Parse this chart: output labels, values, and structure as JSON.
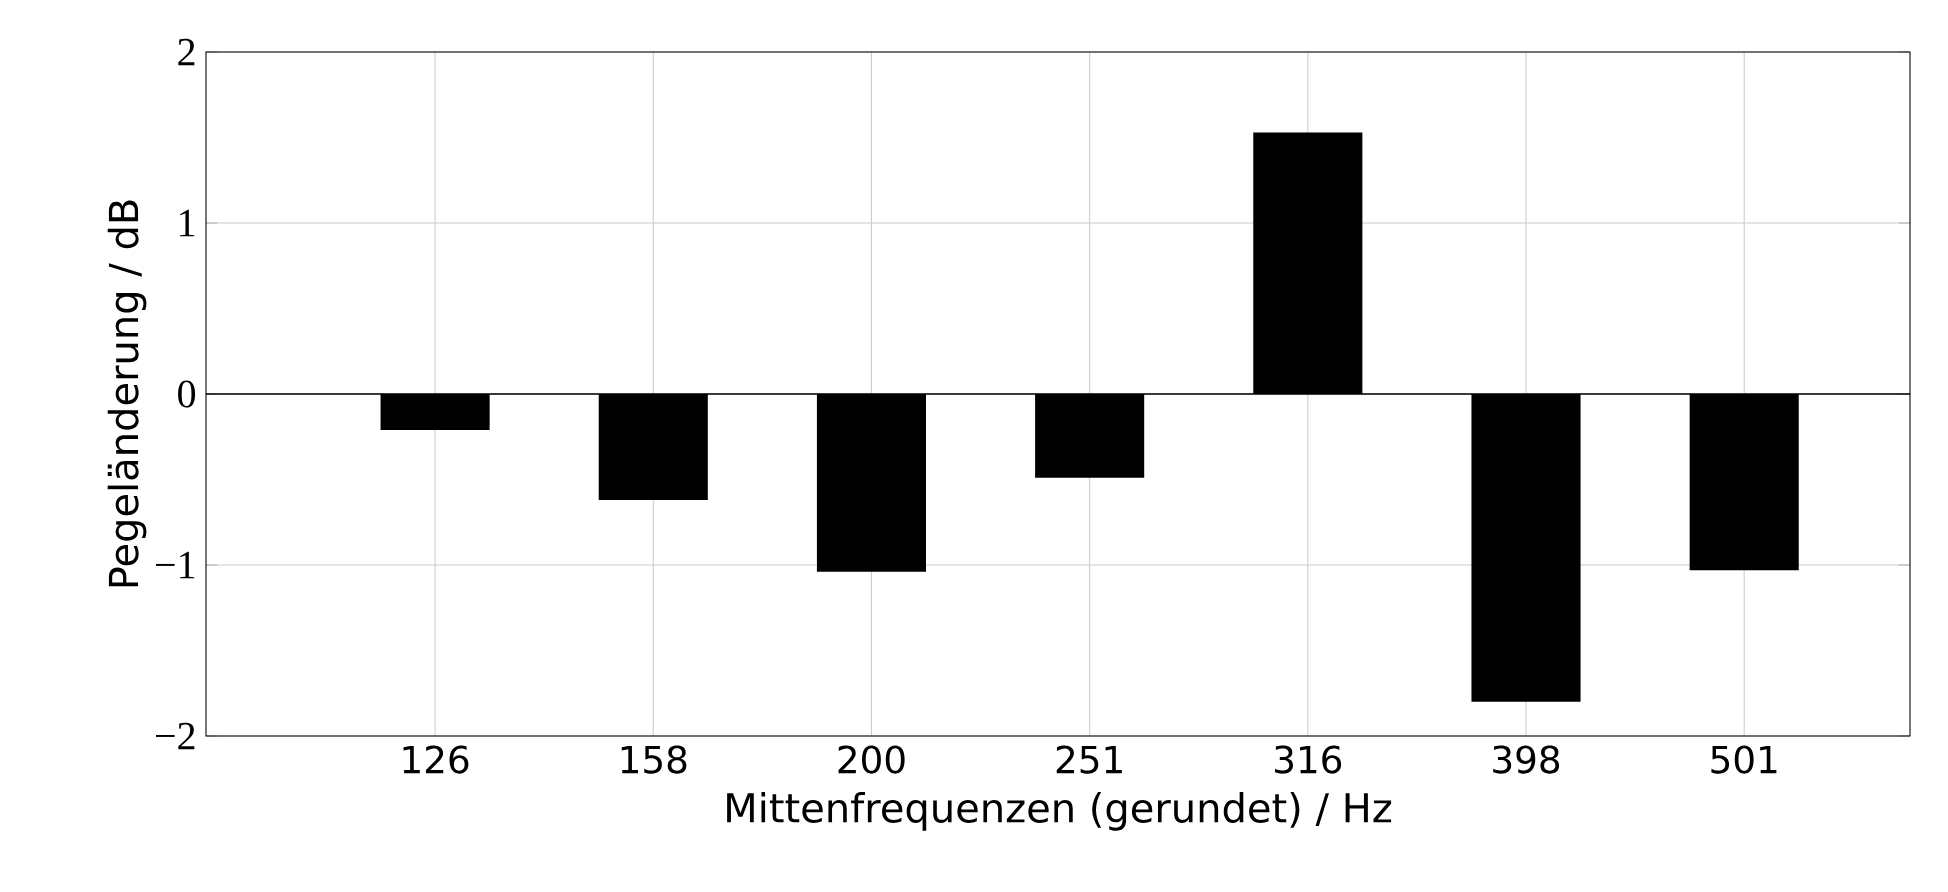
{
  "chart_data": {
    "type": "bar",
    "xlabel": "Mittenfrequenzen (gerundet) / Hz",
    "ylabel": "Pegeländerung / dB",
    "categories": [
      "126",
      "158",
      "200",
      "251",
      "316",
      "398",
      "501"
    ],
    "values": [
      -0.21,
      -0.62,
      -1.04,
      -0.49,
      1.53,
      -1.8,
      -1.03
    ],
    "color": "#000000",
    "ylim": [
      -2,
      2
    ],
    "yticks": [
      {
        "value": -2,
        "label": "−2"
      },
      {
        "value": -1,
        "label": "−1"
      },
      0,
      1,
      2
    ],
    "grid": true,
    "ref_lines": [
      {
        "axis": "y",
        "value": 0,
        "color": "#000000"
      }
    ]
  }
}
